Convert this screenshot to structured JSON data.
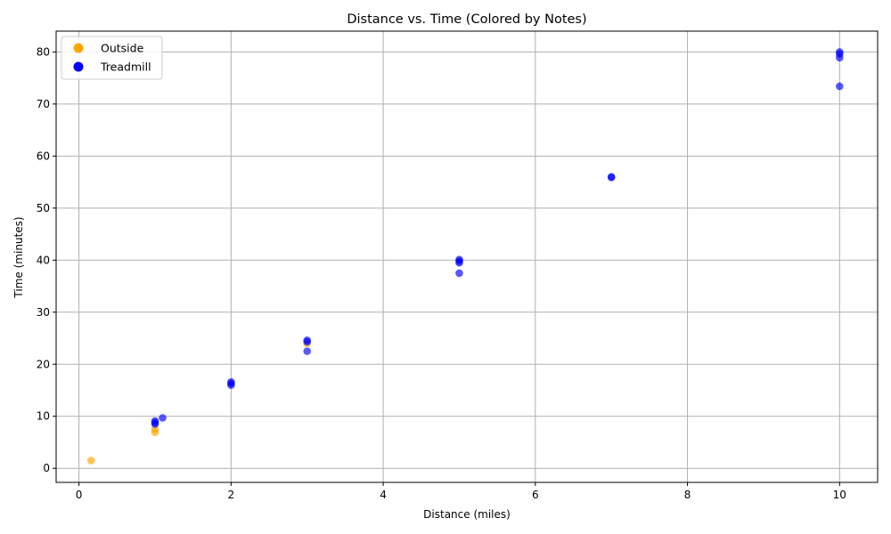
{
  "chart_data": {
    "type": "scatter",
    "title": "Distance vs. Time (Colored by Notes)",
    "xlabel": "Distance (miles)",
    "ylabel": "Time (minutes)",
    "xlim": [
      -0.3,
      10.5
    ],
    "ylim": [
      -2.7,
      84.0
    ],
    "xticks": [
      0,
      2,
      4,
      6,
      8,
      10
    ],
    "yticks": [
      0,
      10,
      20,
      30,
      40,
      50,
      60,
      70,
      80
    ],
    "grid": true,
    "legend_position": "top-left",
    "marker_opacity": 0.65,
    "series": [
      {
        "name": "Outside",
        "color": "#ffa500",
        "points": [
          {
            "x": 0.16,
            "y": 1.5
          },
          {
            "x": 1.0,
            "y": 6.9
          },
          {
            "x": 1.0,
            "y": 7.5
          },
          {
            "x": 3.0,
            "y": 24.0
          }
        ]
      },
      {
        "name": "Treadmill",
        "color": "#0000ff",
        "points": [
          {
            "x": 1.0,
            "y": 8.5
          },
          {
            "x": 1.0,
            "y": 8.8
          },
          {
            "x": 1.0,
            "y": 9.1
          },
          {
            "x": 1.1,
            "y": 9.7
          },
          {
            "x": 2.0,
            "y": 16.0
          },
          {
            "x": 2.0,
            "y": 16.3
          },
          {
            "x": 2.0,
            "y": 16.6
          },
          {
            "x": 3.0,
            "y": 22.5
          },
          {
            "x": 3.0,
            "y": 24.3
          },
          {
            "x": 3.0,
            "y": 24.6
          },
          {
            "x": 5.0,
            "y": 37.5
          },
          {
            "x": 5.0,
            "y": 39.5
          },
          {
            "x": 5.0,
            "y": 39.8
          },
          {
            "x": 5.0,
            "y": 40.1
          },
          {
            "x": 7.0,
            "y": 55.9
          },
          {
            "x": 7.0,
            "y": 56.0
          },
          {
            "x": 10.0,
            "y": 73.4
          },
          {
            "x": 10.0,
            "y": 78.9
          },
          {
            "x": 10.0,
            "y": 79.6
          },
          {
            "x": 10.0,
            "y": 80.0
          }
        ]
      }
    ]
  }
}
